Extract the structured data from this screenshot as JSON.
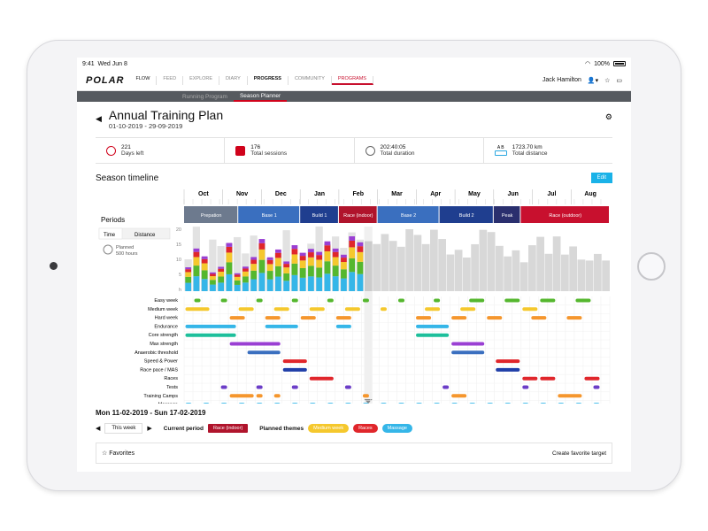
{
  "status": {
    "time": "9:41",
    "date": "Wed Jun 8",
    "battery": "100%"
  },
  "nav": {
    "logo": "POLAR",
    "links": [
      "FLOW",
      "FEED",
      "EXPLORE",
      "DIARY",
      "PROGRESS",
      "COMMUNITY",
      "PROGRAMS"
    ],
    "user": "Jack Hamilton"
  },
  "subnav": {
    "tabs": [
      "Running Program",
      "Season Planner"
    ]
  },
  "header": {
    "title": "Annual Training Plan",
    "dates": "01-10-2019 - 29-09-2019"
  },
  "stats": [
    {
      "value": "221",
      "label": "Days left",
      "icon": "timer-icon"
    },
    {
      "value": "176",
      "label": "Total sessions",
      "icon": "runner-icon"
    },
    {
      "value": "202:40:05",
      "label": "Total duration",
      "icon": "stopwatch-icon"
    },
    {
      "value": "1723.70 km",
      "label": "Total distance",
      "icon": "ruler-icon",
      "ab_marks": "A B"
    }
  ],
  "season": {
    "title": "Season timeline",
    "edit_label": "Edit",
    "periods_label": "Periods",
    "toggle": [
      "Time",
      "Distance"
    ],
    "planned_label": "Planned",
    "planned_value": "500 hours",
    "months": [
      "Oct",
      "Nov",
      "Dec",
      "Jan",
      "Feb",
      "Mar",
      "Apr",
      "May",
      "Jun",
      "Jul",
      "Aug"
    ],
    "phases": [
      {
        "name": "Prepation",
        "start": 0,
        "end": 1.4,
        "color": "#6d7a8e"
      },
      {
        "name": "Base 1",
        "start": 1.4,
        "end": 3.0,
        "color": "#3a6fbf"
      },
      {
        "name": "Build 1",
        "start": 3.0,
        "end": 4.0,
        "color": "#1f3e8f"
      },
      {
        "name": "Race (indoor)",
        "start": 4.0,
        "end": 5.0,
        "color": "#b0142c"
      },
      {
        "name": "Base 2",
        "start": 5.0,
        "end": 6.6,
        "color": "#3a6fbf"
      },
      {
        "name": "Build 2",
        "start": 6.6,
        "end": 8.0,
        "color": "#1f3e8f"
      },
      {
        "name": "Peak",
        "start": 8.0,
        "end": 8.7,
        "color": "#2a2f6e"
      },
      {
        "name": "Race (outdoor)",
        "start": 8.7,
        "end": 11.0,
        "color": "#c8102e"
      }
    ],
    "y_ticks": [
      "20",
      "15",
      "10",
      "5",
      "h"
    ],
    "themes": [
      {
        "name": "Easy week",
        "color": "#55b72e"
      },
      {
        "name": "Medium week",
        "color": "#f5c82d"
      },
      {
        "name": "Hard week",
        "color": "#f5962d"
      },
      {
        "name": "Endurance",
        "color": "#35b6e8"
      },
      {
        "name": "Core strength",
        "color": "#1dbf9b"
      },
      {
        "name": "Max strength",
        "color": "#9a3fd3"
      },
      {
        "name": "Anaerobic threshold",
        "color": "#3a6fbf"
      },
      {
        "name": "Speed & Power",
        "color": "#e0262b"
      },
      {
        "name": "Race pace / MAS",
        "color": "#1f3ea8"
      },
      {
        "name": "Races",
        "color": "#e0262b"
      },
      {
        "name": "Tests",
        "color": "#6b3dc7"
      },
      {
        "name": "Training Camps",
        "color": "#f5962d"
      },
      {
        "name": "Massage",
        "color": "#35b6e8"
      }
    ]
  },
  "week": {
    "range": "Mon 11-02-2019 - Sun 17-02-2019",
    "this_week": "This week",
    "current_period_label": "Current period",
    "current_period": "Race (indoor)",
    "planned_themes_label": "Planned themes",
    "themes": [
      {
        "name": "Medium week",
        "color": "#f5c82d"
      },
      {
        "name": "Races",
        "color": "#e0262b"
      },
      {
        "name": "Massage",
        "color": "#35b6e8"
      }
    ]
  },
  "favorites": {
    "label": "Favorites",
    "create": "Create favorite target"
  }
}
